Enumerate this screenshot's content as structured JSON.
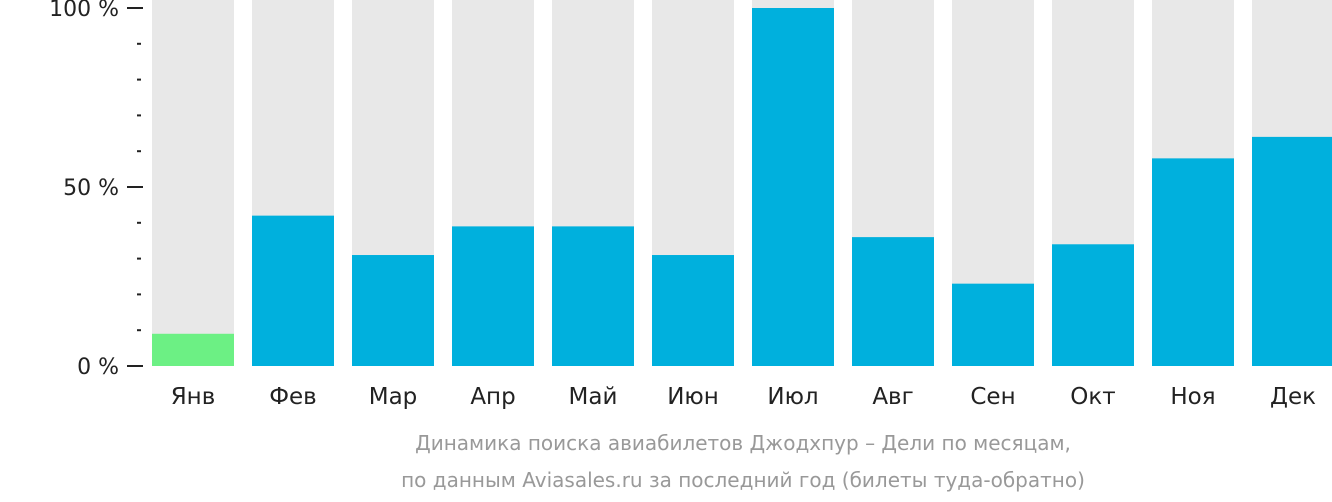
{
  "chart_data": {
    "type": "bar",
    "categories": [
      "Янв",
      "Фев",
      "Мар",
      "Апр",
      "Май",
      "Июн",
      "Июл",
      "Авг",
      "Сен",
      "Окт",
      "Ноя",
      "Дек"
    ],
    "values": [
      9,
      42,
      31,
      39,
      39,
      31,
      100,
      36,
      23,
      34,
      58,
      64
    ],
    "unit": "%",
    "ylim": [
      0,
      100
    ],
    "y_tick_labels": [
      "100 %",
      "50 %",
      "0 %"
    ],
    "y_major_ticks": [
      100,
      50,
      0
    ],
    "y_minor_step": 10,
    "highlight_index": 0,
    "colors": {
      "bar": "#00b0dd",
      "highlight": "#6cf084",
      "background_bar": "#e8e8e8",
      "axis": "#222222",
      "caption": "#999999"
    },
    "caption": [
      "Динамика поиска авиабилетов Джодхпур – Дели по месяцам,",
      "по данным Aviasales.ru за последний год (билеты туда-обратно)"
    ]
  }
}
